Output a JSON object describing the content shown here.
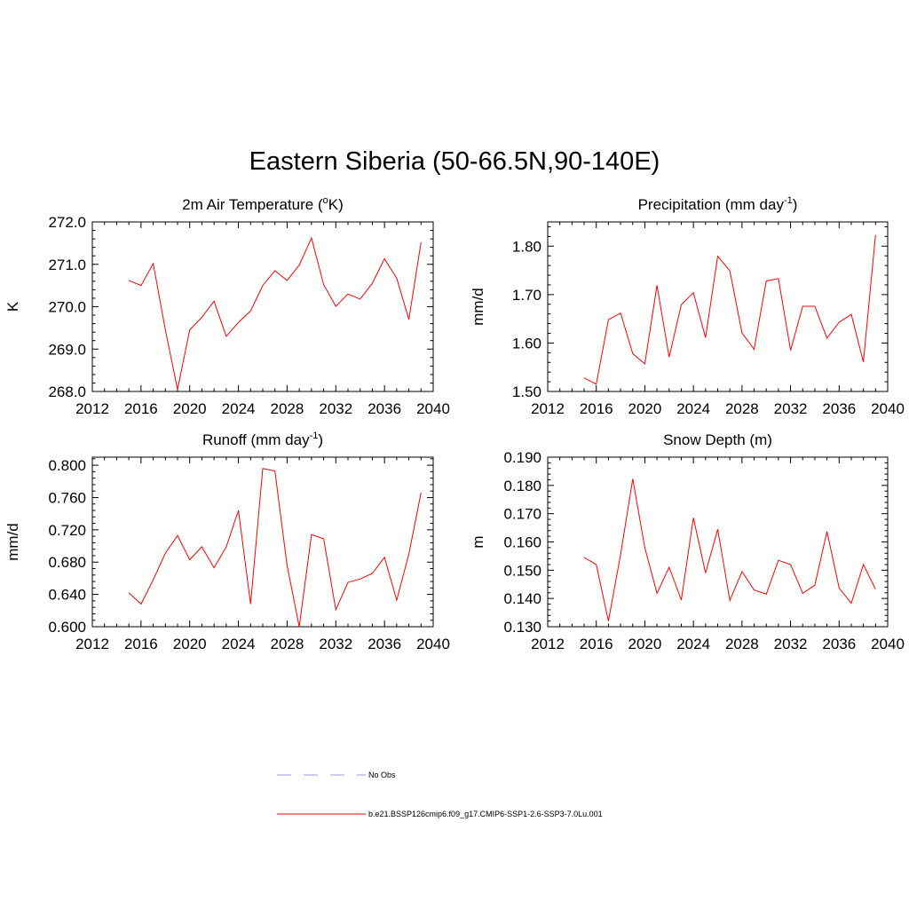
{
  "title": "Eastern Siberia (50-66.5N,90-140E)",
  "colors": {
    "series": "#ff0000",
    "obs": "#9999dd",
    "axis": "#000000"
  },
  "legend": {
    "obs_label": "No Obs",
    "model_label": "b.e21.BSSP126cmip6.f09_g17.CMIP6-SSP1-2.6-SSP3-7.0Lu.001"
  },
  "chart_data": [
    {
      "type": "line",
      "title": "2m Air Temperature (",
      "title_sup": "o",
      "title_after": "K)",
      "ylabel": "K",
      "xlim": [
        2012,
        2040
      ],
      "ylim": [
        268.0,
        272.0
      ],
      "xticks": [
        2012,
        2016,
        2020,
        2024,
        2028,
        2032,
        2036,
        2040
      ],
      "yticks": [
        "268.0",
        "269.0",
        "270.0",
        "271.0",
        "272.0"
      ],
      "series": [
        {
          "x": [
            2015,
            2016,
            2017,
            2018,
            2019,
            2020,
            2021,
            2022,
            2023,
            2024,
            2025,
            2026,
            2027,
            2028,
            2029,
            2030,
            2031,
            2032,
            2033,
            2034,
            2035,
            2036,
            2037,
            2038,
            2039
          ],
          "values": [
            270.62,
            270.5,
            271.02,
            269.45,
            268.05,
            269.45,
            269.75,
            270.13,
            269.3,
            269.63,
            269.9,
            270.5,
            270.85,
            270.62,
            270.98,
            271.62,
            270.52,
            270.01,
            270.3,
            270.18,
            270.55,
            271.13,
            270.67,
            269.7,
            271.52
          ]
        }
      ]
    },
    {
      "type": "line",
      "title": "Precipitation (mm day",
      "title_sup": "-1",
      "title_after": ")",
      "ylabel": "mm/d",
      "xlim": [
        2012,
        2040
      ],
      "ylim": [
        1.5,
        1.85
      ],
      "xticks": [
        2012,
        2016,
        2020,
        2024,
        2028,
        2032,
        2036,
        2040
      ],
      "yticks": [
        "1.50",
        "1.60",
        "1.70",
        "1.80"
      ],
      "series": [
        {
          "x": [
            2015,
            2016,
            2017,
            2018,
            2019,
            2020,
            2021,
            2022,
            2023,
            2024,
            2025,
            2026,
            2027,
            2028,
            2029,
            2030,
            2031,
            2032,
            2033,
            2034,
            2035,
            2036,
            2037,
            2038,
            2039
          ],
          "values": [
            1.528,
            1.515,
            1.648,
            1.662,
            1.578,
            1.557,
            1.719,
            1.571,
            1.679,
            1.704,
            1.611,
            1.779,
            1.749,
            1.621,
            1.587,
            1.728,
            1.733,
            1.585,
            1.676,
            1.676,
            1.61,
            1.643,
            1.659,
            1.561,
            1.823
          ]
        }
      ]
    },
    {
      "type": "line",
      "title": "Runoff (mm day",
      "title_sup": "-1",
      "title_after": ")",
      "ylabel": "mm/d",
      "xlim": [
        2012,
        2040
      ],
      "ylim": [
        0.6,
        0.81
      ],
      "xticks": [
        2012,
        2016,
        2020,
        2024,
        2028,
        2032,
        2036,
        2040
      ],
      "yticks": [
        "0.600",
        "0.640",
        "0.680",
        "0.720",
        "0.760",
        "0.800"
      ],
      "series": [
        {
          "x": [
            2015,
            2016,
            2017,
            2018,
            2019,
            2020,
            2021,
            2022,
            2023,
            2024,
            2025,
            2026,
            2027,
            2028,
            2029,
            2030,
            2031,
            2032,
            2033,
            2034,
            2035,
            2036,
            2037,
            2038,
            2039
          ],
          "values": [
            0.642,
            0.628,
            0.658,
            0.691,
            0.713,
            0.683,
            0.699,
            0.673,
            0.699,
            0.744,
            0.628,
            0.796,
            0.793,
            0.676,
            0.6,
            0.714,
            0.709,
            0.621,
            0.655,
            0.659,
            0.666,
            0.686,
            0.633,
            0.69,
            0.766
          ]
        }
      ]
    },
    {
      "type": "line",
      "title": "Snow Depth (m)",
      "title_sup": "",
      "title_after": "",
      "ylabel": "m",
      "xlim": [
        2012,
        2040
      ],
      "ylim": [
        0.13,
        0.19
      ],
      "xticks": [
        2012,
        2016,
        2020,
        2024,
        2028,
        2032,
        2036,
        2040
      ],
      "yticks": [
        "0.130",
        "0.140",
        "0.150",
        "0.160",
        "0.170",
        "0.180",
        "0.190"
      ],
      "series": [
        {
          "x": [
            2015,
            2016,
            2017,
            2018,
            2019,
            2020,
            2021,
            2022,
            2023,
            2024,
            2025,
            2026,
            2027,
            2028,
            2029,
            2030,
            2031,
            2032,
            2033,
            2034,
            2035,
            2036,
            2037,
            2038,
            2039
          ],
          "values": [
            0.1545,
            0.152,
            0.132,
            0.1555,
            0.1823,
            0.158,
            0.1418,
            0.151,
            0.1395,
            0.1685,
            0.149,
            0.1645,
            0.1393,
            0.1495,
            0.143,
            0.1415,
            0.1535,
            0.152,
            0.1418,
            0.1447,
            0.1637,
            0.1437,
            0.1383,
            0.152,
            0.1433
          ]
        }
      ]
    }
  ]
}
